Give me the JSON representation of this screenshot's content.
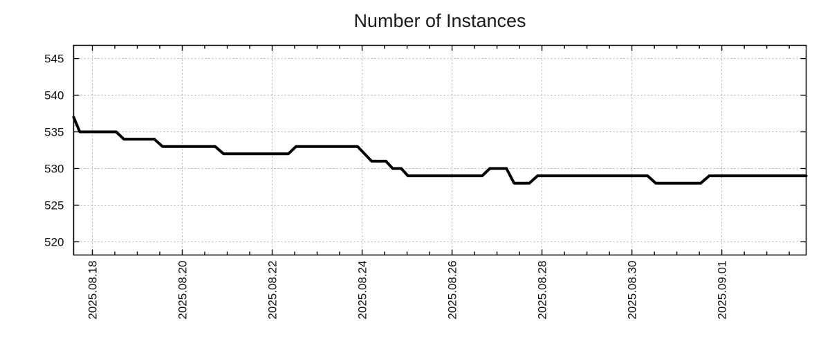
{
  "window": {
    "background": "#ffffff"
  },
  "chart_data": {
    "type": "line",
    "title": "Number of Instances",
    "legend": {
      "visible": false
    },
    "grid": {
      "visible": true,
      "style": "dotted",
      "color": "#aaaaaa"
    },
    "line": {
      "color": "#000000",
      "width": 4
    },
    "frame": {
      "color": "#000000",
      "width": 1.5
    },
    "x_axis": {
      "unit": "days_since_2025.08.18",
      "domain": [
        -0.415,
        15.875
      ],
      "major_ticks": [
        {
          "d": 0,
          "label": "2025.08.18"
        },
        {
          "d": 2,
          "label": "2025.08.20"
        },
        {
          "d": 4,
          "label": "2025.08.22"
        },
        {
          "d": 6,
          "label": "2025.08.24"
        },
        {
          "d": 8,
          "label": "2025.08.26"
        },
        {
          "d": 10,
          "label": "2025.08.28"
        },
        {
          "d": 12,
          "label": "2025.08.30"
        },
        {
          "d": 14,
          "label": "2025.09.01"
        }
      ],
      "minor_tick_step": 0.5
    },
    "y_axis": {
      "domain": [
        518.2,
        546.8
      ],
      "major_ticks": [
        520,
        525,
        530,
        535,
        540,
        545
      ]
    },
    "series": [
      {
        "points": [
          [
            -0.415,
            537
          ],
          [
            -0.28,
            535
          ],
          [
            0.53,
            535
          ],
          [
            0.7,
            534
          ],
          [
            1.38,
            534
          ],
          [
            1.56,
            533
          ],
          [
            2.73,
            533
          ],
          [
            2.92,
            532
          ],
          [
            4.36,
            532
          ],
          [
            4.53,
            533
          ],
          [
            5.9,
            533
          ],
          [
            6.21,
            531
          ],
          [
            6.53,
            531
          ],
          [
            6.68,
            530
          ],
          [
            6.87,
            530
          ],
          [
            7.02,
            529
          ],
          [
            8.67,
            529
          ],
          [
            8.84,
            530
          ],
          [
            9.21,
            530
          ],
          [
            9.38,
            528
          ],
          [
            9.72,
            528
          ],
          [
            9.9,
            529
          ],
          [
            12.35,
            529
          ],
          [
            12.53,
            528
          ],
          [
            13.53,
            528
          ],
          [
            13.72,
            529
          ],
          [
            15.875,
            529
          ]
        ]
      }
    ]
  }
}
